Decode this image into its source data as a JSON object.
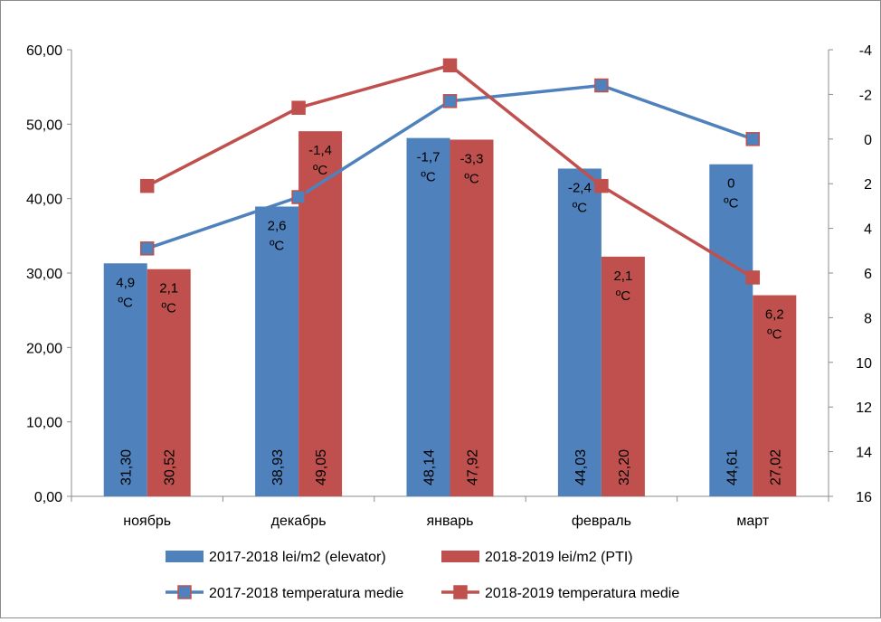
{
  "chart_data": {
    "type": "bar",
    "categories": [
      "ноябрь",
      "декабрь",
      "январь",
      "февраль",
      "март"
    ],
    "bar_series": [
      {
        "name": "2017-2018 lei/m2 (elevator)",
        "values": [
          31.3,
          38.93,
          48.14,
          44.03,
          44.61
        ],
        "labels": [
          "31,30",
          "38,93",
          "48,14",
          "44,03",
          "44,61"
        ],
        "color": "#4F81BD"
      },
      {
        "name": "2018-2019 lei/m2 (PTI)",
        "values": [
          30.52,
          49.05,
          47.92,
          32.2,
          27.02
        ],
        "labels": [
          "30,52",
          "49,05",
          "47,92",
          "32,20",
          "27,02"
        ],
        "color": "#C0504D"
      }
    ],
    "line_series": [
      {
        "name": "2017-2018 temperatura medie",
        "values": [
          4.9,
          2.6,
          -1.7,
          -2.4,
          0
        ],
        "labels": [
          "4,9",
          "2,6",
          "-1,7",
          "-2,4",
          "0"
        ],
        "unit": "ºC",
        "color": "#4F81BD"
      },
      {
        "name": "2018-2019 temperatura medie",
        "values": [
          2.1,
          -1.4,
          -3.3,
          2.1,
          6.2
        ],
        "labels": [
          "2,1",
          "-1,4",
          "-3,3",
          "2,1",
          "6,2"
        ],
        "unit": "ºC",
        "color": "#C0504D"
      }
    ],
    "y_left": {
      "min": 0,
      "max": 60,
      "ticks": [
        "0,00",
        "10,00",
        "20,00",
        "30,00",
        "40,00",
        "50,00",
        "60,00"
      ]
    },
    "y_right": {
      "min": -4,
      "max": 16,
      "inverted": true,
      "ticks": [
        "-4",
        "-2",
        "0",
        "2",
        "4",
        "6",
        "8",
        "10",
        "12",
        "14",
        "16"
      ]
    },
    "legend_position": "bottom",
    "grid": false
  }
}
